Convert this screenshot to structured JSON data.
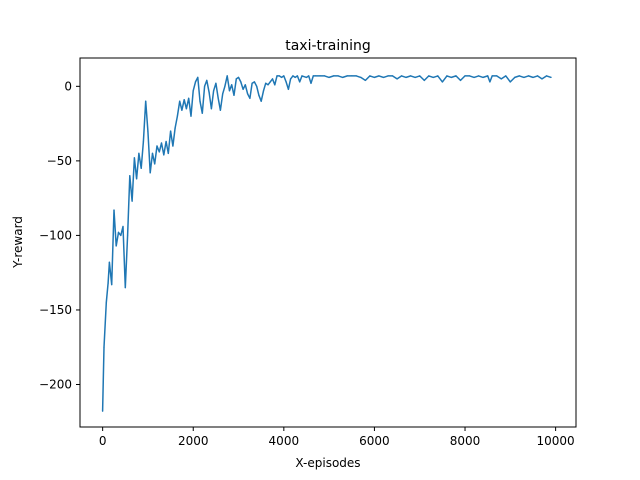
{
  "chart_data": {
    "type": "line",
    "title": "taxi-training",
    "xlabel": "X-episodes",
    "ylabel": "Y-reward",
    "xlim": [
      -500,
      10450
    ],
    "ylim": [
      -228.5,
      19
    ],
    "xticks": [
      0,
      2000,
      4000,
      6000,
      8000,
      10000
    ],
    "xtick_labels": [
      "0",
      "2000",
      "4000",
      "6000",
      "8000",
      "10000"
    ],
    "yticks": [
      -200,
      -150,
      -100,
      -50,
      0
    ],
    "ytick_labels": [
      "−200",
      "−150",
      "−100",
      "−50",
      "0"
    ],
    "grid": false,
    "legend": "none",
    "line_color": "#1f77b4",
    "series": [
      {
        "values": [
          {
            "x": 0,
            "y": -218
          },
          {
            "x": 30,
            "y": -175
          },
          {
            "x": 80,
            "y": -145
          },
          {
            "x": 120,
            "y": -132
          },
          {
            "x": 150,
            "y": -118
          },
          {
            "x": 200,
            "y": -133
          },
          {
            "x": 250,
            "y": -83
          },
          {
            "x": 300,
            "y": -107
          },
          {
            "x": 350,
            "y": -98
          },
          {
            "x": 400,
            "y": -100
          },
          {
            "x": 450,
            "y": -94
          },
          {
            "x": 500,
            "y": -135
          },
          {
            "x": 550,
            "y": -100
          },
          {
            "x": 600,
            "y": -60
          },
          {
            "x": 650,
            "y": -77
          },
          {
            "x": 700,
            "y": -48
          },
          {
            "x": 750,
            "y": -62
          },
          {
            "x": 800,
            "y": -45
          },
          {
            "x": 850,
            "y": -55
          },
          {
            "x": 900,
            "y": -37
          },
          {
            "x": 950,
            "y": -10
          },
          {
            "x": 1000,
            "y": -30
          },
          {
            "x": 1050,
            "y": -58
          },
          {
            "x": 1100,
            "y": -45
          },
          {
            "x": 1150,
            "y": -52
          },
          {
            "x": 1200,
            "y": -40
          },
          {
            "x": 1250,
            "y": -44
          },
          {
            "x": 1300,
            "y": -38
          },
          {
            "x": 1350,
            "y": -46
          },
          {
            "x": 1400,
            "y": -37
          },
          {
            "x": 1450,
            "y": -45
          },
          {
            "x": 1500,
            "y": -30
          },
          {
            "x": 1550,
            "y": -40
          },
          {
            "x": 1600,
            "y": -28
          },
          {
            "x": 1650,
            "y": -20
          },
          {
            "x": 1700,
            "y": -10
          },
          {
            "x": 1750,
            "y": -16
          },
          {
            "x": 1800,
            "y": -9
          },
          {
            "x": 1850,
            "y": -15
          },
          {
            "x": 1900,
            "y": -8
          },
          {
            "x": 1950,
            "y": -20
          },
          {
            "x": 2000,
            "y": -3
          },
          {
            "x": 2050,
            "y": 3
          },
          {
            "x": 2100,
            "y": 6
          },
          {
            "x": 2150,
            "y": -10
          },
          {
            "x": 2200,
            "y": -18
          },
          {
            "x": 2250,
            "y": 0
          },
          {
            "x": 2300,
            "y": 4
          },
          {
            "x": 2350,
            "y": -4
          },
          {
            "x": 2400,
            "y": -15
          },
          {
            "x": 2450,
            "y": -3
          },
          {
            "x": 2500,
            "y": 2
          },
          {
            "x": 2550,
            "y": -8
          },
          {
            "x": 2600,
            "y": -16
          },
          {
            "x": 2650,
            "y": -5
          },
          {
            "x": 2700,
            "y": 0
          },
          {
            "x": 2750,
            "y": 7
          },
          {
            "x": 2800,
            "y": -3
          },
          {
            "x": 2850,
            "y": 1
          },
          {
            "x": 2900,
            "y": -6
          },
          {
            "x": 2950,
            "y": 5
          },
          {
            "x": 3000,
            "y": 6
          },
          {
            "x": 3050,
            "y": 3
          },
          {
            "x": 3100,
            "y": -2
          },
          {
            "x": 3150,
            "y": 1
          },
          {
            "x": 3200,
            "y": -5
          },
          {
            "x": 3250,
            "y": -8
          },
          {
            "x": 3300,
            "y": 2
          },
          {
            "x": 3350,
            "y": 3
          },
          {
            "x": 3400,
            "y": 0
          },
          {
            "x": 3450,
            "y": -6
          },
          {
            "x": 3500,
            "y": -10
          },
          {
            "x": 3550,
            "y": -3
          },
          {
            "x": 3600,
            "y": 2
          },
          {
            "x": 3650,
            "y": 1
          },
          {
            "x": 3700,
            "y": 3
          },
          {
            "x": 3750,
            "y": 5
          },
          {
            "x": 3800,
            "y": 1
          },
          {
            "x": 3850,
            "y": 7
          },
          {
            "x": 3900,
            "y": 7
          },
          {
            "x": 3950,
            "y": 6
          },
          {
            "x": 4000,
            "y": 7
          },
          {
            "x": 4050,
            "y": 3
          },
          {
            "x": 4100,
            "y": -2
          },
          {
            "x": 4150,
            "y": 5
          },
          {
            "x": 4200,
            "y": 7
          },
          {
            "x": 4250,
            "y": 6
          },
          {
            "x": 4300,
            "y": 7
          },
          {
            "x": 4350,
            "y": 3
          },
          {
            "x": 4400,
            "y": 7
          },
          {
            "x": 4500,
            "y": 6
          },
          {
            "x": 4550,
            "y": 7
          },
          {
            "x": 4600,
            "y": 2
          },
          {
            "x": 4650,
            "y": 7
          },
          {
            "x": 4700,
            "y": 7
          },
          {
            "x": 4800,
            "y": 7
          },
          {
            "x": 4900,
            "y": 7
          },
          {
            "x": 5000,
            "y": 6
          },
          {
            "x": 5100,
            "y": 7
          },
          {
            "x": 5200,
            "y": 7
          },
          {
            "x": 5300,
            "y": 6
          },
          {
            "x": 5400,
            "y": 7
          },
          {
            "x": 5500,
            "y": 7
          },
          {
            "x": 5600,
            "y": 7
          },
          {
            "x": 5700,
            "y": 6
          },
          {
            "x": 5800,
            "y": 4
          },
          {
            "x": 5900,
            "y": 7
          },
          {
            "x": 6000,
            "y": 6
          },
          {
            "x": 6100,
            "y": 7
          },
          {
            "x": 6200,
            "y": 6
          },
          {
            "x": 6300,
            "y": 7
          },
          {
            "x": 6400,
            "y": 7
          },
          {
            "x": 6500,
            "y": 5
          },
          {
            "x": 6600,
            "y": 7
          },
          {
            "x": 6700,
            "y": 6
          },
          {
            "x": 6800,
            "y": 7
          },
          {
            "x": 6900,
            "y": 6
          },
          {
            "x": 7000,
            "y": 7
          },
          {
            "x": 7100,
            "y": 4
          },
          {
            "x": 7200,
            "y": 7
          },
          {
            "x": 7300,
            "y": 6
          },
          {
            "x": 7400,
            "y": 7
          },
          {
            "x": 7500,
            "y": 3
          },
          {
            "x": 7600,
            "y": 7
          },
          {
            "x": 7700,
            "y": 6
          },
          {
            "x": 7800,
            "y": 7
          },
          {
            "x": 7900,
            "y": 4
          },
          {
            "x": 8000,
            "y": 7
          },
          {
            "x": 8100,
            "y": 7
          },
          {
            "x": 8200,
            "y": 6
          },
          {
            "x": 8300,
            "y": 7
          },
          {
            "x": 8400,
            "y": 6
          },
          {
            "x": 8500,
            "y": 7
          },
          {
            "x": 8550,
            "y": 3
          },
          {
            "x": 8600,
            "y": 7
          },
          {
            "x": 8700,
            "y": 7
          },
          {
            "x": 8800,
            "y": 5
          },
          {
            "x": 8900,
            "y": 7
          },
          {
            "x": 9000,
            "y": 3
          },
          {
            "x": 9100,
            "y": 6
          },
          {
            "x": 9200,
            "y": 7
          },
          {
            "x": 9300,
            "y": 6
          },
          {
            "x": 9400,
            "y": 7
          },
          {
            "x": 9500,
            "y": 6
          },
          {
            "x": 9600,
            "y": 7
          },
          {
            "x": 9700,
            "y": 5
          },
          {
            "x": 9800,
            "y": 7
          },
          {
            "x": 9900,
            "y": 6
          }
        ]
      }
    ]
  }
}
